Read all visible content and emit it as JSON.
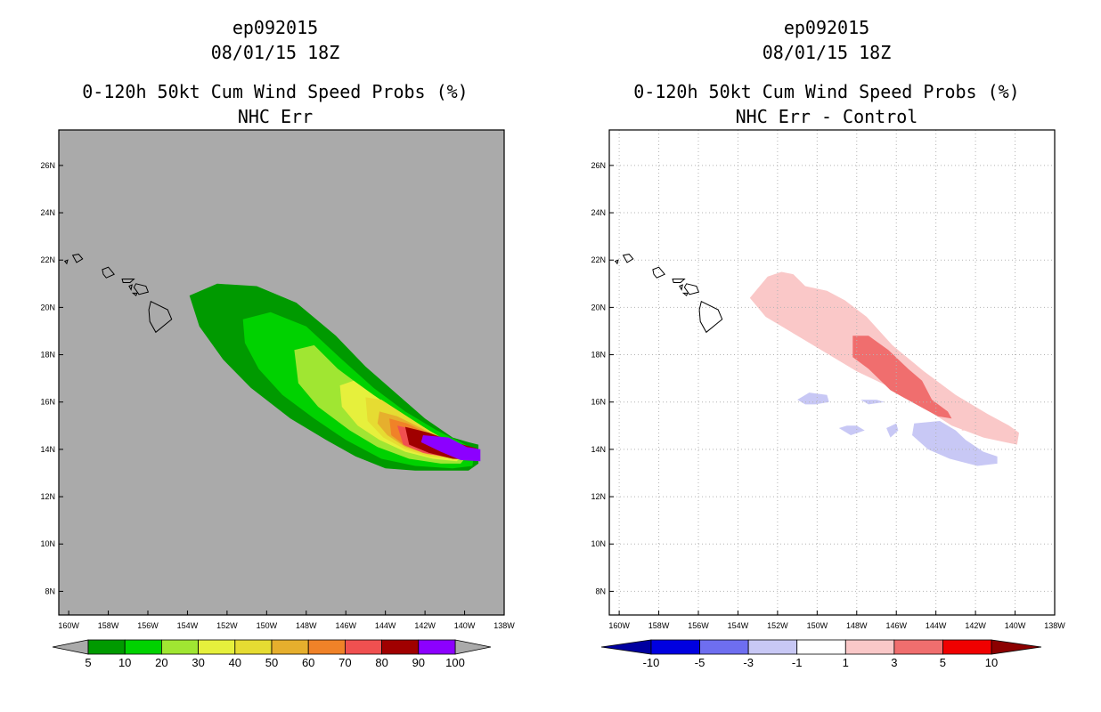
{
  "chart_data": [
    {
      "type": "contour-map",
      "storm_id": "ep092015",
      "datetime": "08/01/15 18Z",
      "title": "0-120h 50kt Cum Wind Speed Probs (%)",
      "subtitle": "NHC Err",
      "lon_range": [
        -160.5,
        -138
      ],
      "lat_range": [
        7,
        27.5
      ],
      "lon_ticks": [
        -160,
        -158,
        -156,
        -154,
        -152,
        -150,
        -148,
        -146,
        -144,
        -142,
        -140,
        -138
      ],
      "lon_tick_labels": [
        "160W",
        "158W",
        "156W",
        "154W",
        "152W",
        "150W",
        "148W",
        "146W",
        "144W",
        "142W",
        "140W",
        "138W"
      ],
      "lat_ticks": [
        8,
        10,
        12,
        14,
        16,
        18,
        20,
        22,
        24,
        26
      ],
      "lat_tick_labels": [
        "8N",
        "10N",
        "12N",
        "14N",
        "16N",
        "18N",
        "20N",
        "22N",
        "24N",
        "26N"
      ],
      "grid": false,
      "background_color": "#aaaaaa",
      "colorbar": {
        "labels": [
          "5",
          "10",
          "20",
          "30",
          "40",
          "50",
          "60",
          "70",
          "80",
          "90",
          "100"
        ],
        "colors": [
          "#009a00",
          "#00d200",
          "#a0e632",
          "#e6f03c",
          "#e6dc32",
          "#e6af2d",
          "#f08228",
          "#f05050",
          "#a00000",
          "#8c00ff"
        ],
        "end_color": "#aaaaaa"
      },
      "levels": [
        {
          "min": 5,
          "color": "#009a00",
          "lonlat": [
            [
              -153.9,
              20.5
            ],
            [
              -152.5,
              21
            ],
            [
              -150.5,
              20.9
            ],
            [
              -148.5,
              20.2
            ],
            [
              -146.5,
              18.8
            ],
            [
              -145,
              17.5
            ],
            [
              -143.5,
              16.4
            ],
            [
              -142,
              15.3
            ],
            [
              -140.6,
              14.5
            ],
            [
              -139.8,
              14.3
            ],
            [
              -139.3,
              14.2
            ],
            [
              -139.3,
              13.4
            ],
            [
              -139.8,
              13.1
            ],
            [
              -142.5,
              13.1
            ],
            [
              -144,
              13.2
            ],
            [
              -145.5,
              13.7
            ],
            [
              -147,
              14.4
            ],
            [
              -148.8,
              15.3
            ],
            [
              -150.8,
              16.6
            ],
            [
              -152.2,
              17.8
            ],
            [
              -153.4,
              19.2
            ]
          ]
        },
        {
          "min": 10,
          "color": "#00d200",
          "lonlat": [
            [
              -151.2,
              19.5
            ],
            [
              -149.8,
              19.8
            ],
            [
              -148,
              19.2
            ],
            [
              -146.2,
              17.8
            ],
            [
              -144.6,
              16.6
            ],
            [
              -143,
              15.6
            ],
            [
              -141.4,
              14.8
            ],
            [
              -140.2,
              14.3
            ],
            [
              -139.5,
              14.0
            ],
            [
              -139.6,
              13.3
            ],
            [
              -140.6,
              13.2
            ],
            [
              -142.5,
              13.3
            ],
            [
              -144.2,
              13.6
            ],
            [
              -146,
              14.4
            ],
            [
              -147.6,
              15.3
            ],
            [
              -149.2,
              16.3
            ],
            [
              -150.4,
              17.4
            ],
            [
              -151.1,
              18.5
            ]
          ]
        },
        {
          "min": 20,
          "color": "#a0e632",
          "lonlat": [
            [
              -148.6,
              18.2
            ],
            [
              -147.6,
              18.4
            ],
            [
              -146.4,
              17.4
            ],
            [
              -144.8,
              16.4
            ],
            [
              -143.2,
              15.5
            ],
            [
              -141.6,
              14.7
            ],
            [
              -140.5,
              14.2
            ],
            [
              -139.8,
              13.8
            ],
            [
              -140.2,
              13.4
            ],
            [
              -141.2,
              13.4
            ],
            [
              -142.8,
              13.6
            ],
            [
              -144.4,
              14.1
            ],
            [
              -145.8,
              14.8
            ],
            [
              -147.4,
              15.8
            ],
            [
              -148.4,
              16.8
            ]
          ]
        },
        {
          "min": 30,
          "color": "#e6f03c",
          "lonlat": [
            [
              -146.3,
              16.7
            ],
            [
              -145.6,
              16.9
            ],
            [
              -144.6,
              16.3
            ],
            [
              -143.2,
              15.5
            ],
            [
              -141.8,
              14.8
            ],
            [
              -140.6,
              14.2
            ],
            [
              -139.9,
              13.9
            ],
            [
              -140.4,
              13.5
            ],
            [
              -141.6,
              13.6
            ],
            [
              -143,
              13.9
            ],
            [
              -144.3,
              14.4
            ],
            [
              -145.4,
              15.0
            ],
            [
              -146.2,
              15.8
            ]
          ]
        },
        {
          "min": 40,
          "color": "#e6dc32",
          "lonlat": [
            [
              -145.0,
              16.2
            ],
            [
              -144.2,
              16.1
            ],
            [
              -143.1,
              15.5
            ],
            [
              -141.8,
              14.8
            ],
            [
              -140.7,
              14.2
            ],
            [
              -140.0,
              13.9
            ],
            [
              -140.6,
              13.6
            ],
            [
              -141.8,
              13.7
            ],
            [
              -143,
              14.0
            ],
            [
              -144.1,
              14.5
            ],
            [
              -144.9,
              15.2
            ]
          ]
        },
        {
          "min": 50,
          "color": "#e6af2d",
          "lonlat": [
            [
              -144.3,
              15.6
            ],
            [
              -143.4,
              15.4
            ],
            [
              -142.2,
              14.9
            ],
            [
              -140.9,
              14.3
            ],
            [
              -140.1,
              13.95
            ],
            [
              -140.8,
              13.7
            ],
            [
              -141.9,
              13.8
            ],
            [
              -143,
              14.1
            ],
            [
              -143.9,
              14.6
            ],
            [
              -144.4,
              15.1
            ]
          ]
        },
        {
          "min": 60,
          "color": "#f08228",
          "lonlat": [
            [
              -143.8,
              15.3
            ],
            [
              -142.9,
              15.1
            ],
            [
              -141.7,
              14.6
            ],
            [
              -140.5,
              14.2
            ],
            [
              -140.2,
              13.95
            ],
            [
              -140.9,
              13.75
            ],
            [
              -142,
              13.85
            ],
            [
              -143,
              14.15
            ],
            [
              -143.7,
              14.6
            ]
          ]
        },
        {
          "min": 70,
          "color": "#f05050",
          "lonlat": [
            [
              -143.4,
              15.0
            ],
            [
              -142.3,
              14.8
            ],
            [
              -141.0,
              14.4
            ],
            [
              -140.0,
              14.1
            ],
            [
              -139.5,
              13.95
            ],
            [
              -139.8,
              13.6
            ],
            [
              -140.8,
              13.65
            ],
            [
              -142.1,
              13.85
            ],
            [
              -143.1,
              14.2
            ]
          ]
        },
        {
          "min": 80,
          "color": "#a00000",
          "lonlat": [
            [
              -143.0,
              14.95
            ],
            [
              -141.8,
              14.7
            ],
            [
              -140.3,
              14.25
            ],
            [
              -139.4,
              14.05
            ],
            [
              -139.3,
              13.55
            ],
            [
              -140.6,
              13.6
            ],
            [
              -141.8,
              13.85
            ],
            [
              -142.8,
              14.2
            ]
          ]
        },
        {
          "min": 90,
          "color": "#8c00ff",
          "lonlat": [
            [
              -142.1,
              14.6
            ],
            [
              -140.8,
              14.5
            ],
            [
              -139.9,
              14.1
            ],
            [
              -139.2,
              14.0
            ],
            [
              -139.2,
              13.5
            ],
            [
              -140.2,
              13.55
            ],
            [
              -141.2,
              13.9
            ],
            [
              -142.2,
              14.3
            ]
          ]
        }
      ]
    },
    {
      "type": "contour-map",
      "storm_id": "ep092015",
      "datetime": "08/01/15 18Z",
      "title": "0-120h 50kt Cum Wind Speed Probs (%)",
      "subtitle": "NHC Err - Control",
      "lon_range": [
        -160.5,
        -138
      ],
      "lat_range": [
        7,
        27.5
      ],
      "lon_ticks": [
        -160,
        -158,
        -156,
        -154,
        -152,
        -150,
        -148,
        -146,
        -144,
        -142,
        -140,
        -138
      ],
      "lon_tick_labels": [
        "160W",
        "158W",
        "156W",
        "154W",
        "152W",
        "150W",
        "148W",
        "146W",
        "144W",
        "142W",
        "140W",
        "138W"
      ],
      "lat_ticks": [
        8,
        10,
        12,
        14,
        16,
        18,
        20,
        22,
        24,
        26
      ],
      "lat_tick_labels": [
        "8N",
        "10N",
        "12N",
        "14N",
        "16N",
        "18N",
        "20N",
        "22N",
        "24N",
        "26N"
      ],
      "grid": true,
      "background_color": "#ffffff",
      "colorbar": {
        "labels": [
          "-10",
          "-5",
          "-3",
          "-1",
          "1",
          "3",
          "5",
          "10"
        ],
        "colors": [
          "#0000e0",
          "#6e6ef0",
          "#c8c8f5",
          "#ffffff",
          "#fac8c8",
          "#f06e6e",
          "#f00000"
        ],
        "left_end_color": "#0000a0",
        "right_end_color": "#8c0000"
      },
      "levels": [
        {
          "min": 1,
          "color": "#fac8c8",
          "lonlat": [
            [
              -153.4,
              20.4
            ],
            [
              -152.5,
              21.3
            ],
            [
              -151.8,
              21.5
            ],
            [
              -151.2,
              21.4
            ],
            [
              -150.6,
              20.9
            ],
            [
              -149.5,
              20.7
            ],
            [
              -148.6,
              20.3
            ],
            [
              -147.5,
              19.6
            ],
            [
              -146.2,
              18.4
            ],
            [
              -144.6,
              17.3
            ],
            [
              -143,
              16.3
            ],
            [
              -141.4,
              15.5
            ],
            [
              -140.3,
              15.0
            ],
            [
              -139.8,
              14.7
            ],
            [
              -139.9,
              14.2
            ],
            [
              -140.5,
              14.3
            ],
            [
              -141.6,
              14.5
            ],
            [
              -143.2,
              15.0
            ],
            [
              -144.5,
              15.7
            ],
            [
              -146,
              16.5
            ],
            [
              -148,
              17.3
            ],
            [
              -149.8,
              18.2
            ],
            [
              -151.2,
              18.9
            ],
            [
              -152.6,
              19.6
            ]
          ]
        },
        {
          "min": 3,
          "color": "#f06e6e",
          "lonlat": [
            [
              -148.2,
              18.8
            ],
            [
              -147.4,
              18.8
            ],
            [
              -146.4,
              18.2
            ],
            [
              -145.4,
              17.4
            ],
            [
              -144.7,
              16.9
            ],
            [
              -144.2,
              16.1
            ],
            [
              -143.4,
              15.6
            ],
            [
              -143.2,
              15.3
            ],
            [
              -143.9,
              15.4
            ],
            [
              -145,
              15.9
            ],
            [
              -146.3,
              16.5
            ],
            [
              -147.4,
              17.4
            ],
            [
              -148.2,
              17.9
            ]
          ]
        },
        {
          "min": 1,
          "color": "#fac8c8",
          "lonlat": [
            [
              -142.6,
              15.0
            ],
            [
              -142.0,
              15.1
            ],
            [
              -141.9,
              14.8
            ],
            [
              -142.7,
              14.8
            ]
          ]
        },
        {
          "min": -3,
          "color": "#c8c8f5",
          "lonlat": [
            [
              -150.1,
              15.9
            ],
            [
              -150.6,
              15.9
            ],
            [
              -151.0,
              16.1
            ],
            [
              -150.4,
              16.4
            ],
            [
              -149.5,
              16.3
            ],
            [
              -149.4,
              16.0
            ]
          ]
        },
        {
          "min": -3,
          "color": "#c8c8f5",
          "lonlat": [
            [
              -147.8,
              16.1
            ],
            [
              -147.0,
              16.1
            ],
            [
              -146.6,
              16.0
            ],
            [
              -147.4,
              15.9
            ]
          ]
        },
        {
          "min": -3,
          "color": "#c8c8f5",
          "lonlat": [
            [
              -148.5,
              15.0
            ],
            [
              -148.0,
              15.0
            ],
            [
              -147.6,
              14.8
            ],
            [
              -148.3,
              14.6
            ],
            [
              -148.9,
              14.9
            ]
          ]
        },
        {
          "min": -3,
          "color": "#c8c8f5",
          "lonlat": [
            [
              -146.5,
              14.9
            ],
            [
              -146.0,
              15.1
            ],
            [
              -145.9,
              14.8
            ],
            [
              -146.3,
              14.5
            ]
          ]
        },
        {
          "min": -3,
          "color": "#c8c8f5",
          "lonlat": [
            [
              -145.1,
              15.1
            ],
            [
              -143.8,
              15.2
            ],
            [
              -143.0,
              14.8
            ],
            [
              -142.5,
              14.4
            ],
            [
              -141.6,
              13.9
            ],
            [
              -140.9,
              13.7
            ],
            [
              -140.9,
              13.4
            ],
            [
              -141.9,
              13.3
            ],
            [
              -143.3,
              13.6
            ],
            [
              -144.4,
              14.0
            ],
            [
              -145.2,
              14.6
            ]
          ]
        }
      ]
    }
  ]
}
